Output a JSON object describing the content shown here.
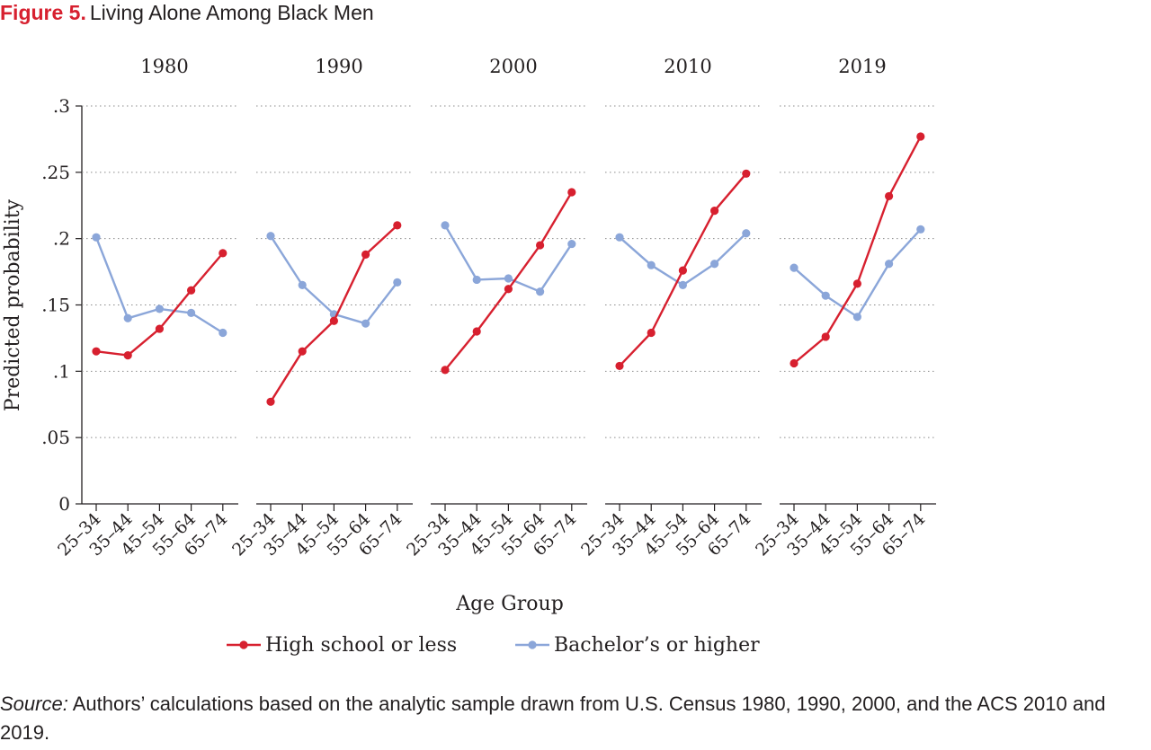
{
  "figure": {
    "label": "Figure 5.",
    "title": "Living Alone Among Black Men"
  },
  "source": {
    "lead": "Source:",
    "text": "Authors’ calculations based on the analytic sample drawn from U.S. Census 1980, 1990, 2000, and the ACS 2010 and 2019."
  },
  "colors": {
    "high_school": "#d7202f",
    "bachelors": "#8ba6d9",
    "text": "#231f20",
    "grid": "#8a8a8a"
  },
  "chart_data": {
    "type": "line",
    "xlabel": "Age Group",
    "ylabel": "Predicted probability",
    "ylim": [
      0,
      0.3
    ],
    "yticks": [
      0,
      0.05,
      0.1,
      0.15,
      0.2,
      0.25,
      0.3
    ],
    "ytick_labels": [
      "0",
      ".05",
      ".1",
      ".15",
      ".2",
      ".25",
      ".3"
    ],
    "grid": true,
    "legend_position": "bottom",
    "categories": [
      "25–34",
      "35–44",
      "45–54",
      "55–64",
      "65–74"
    ],
    "series_names": [
      "High school or less",
      "Bachelor’s or higher"
    ],
    "panels": [
      {
        "title": "1980",
        "series": [
          {
            "name": "High school or less",
            "values": [
              0.115,
              0.112,
              0.132,
              0.161,
              0.189
            ]
          },
          {
            "name": "Bachelor’s or higher",
            "values": [
              0.201,
              0.14,
              0.147,
              0.144,
              0.129
            ]
          }
        ]
      },
      {
        "title": "1990",
        "series": [
          {
            "name": "High school or less",
            "values": [
              0.077,
              0.115,
              0.138,
              0.188,
              0.21
            ]
          },
          {
            "name": "Bachelor’s or higher",
            "values": [
              0.202,
              0.165,
              0.143,
              0.136,
              0.167
            ]
          }
        ]
      },
      {
        "title": "2000",
        "series": [
          {
            "name": "High school or less",
            "values": [
              0.101,
              0.13,
              0.162,
              0.195,
              0.235
            ]
          },
          {
            "name": "Bachelor’s or higher",
            "values": [
              0.21,
              0.169,
              0.17,
              0.16,
              0.196
            ]
          }
        ]
      },
      {
        "title": "2010",
        "series": [
          {
            "name": "High school or less",
            "values": [
              0.104,
              0.129,
              0.176,
              0.221,
              0.249
            ]
          },
          {
            "name": "Bachelor’s or higher",
            "values": [
              0.201,
              0.18,
              0.165,
              0.181,
              0.204
            ]
          }
        ]
      },
      {
        "title": "2019",
        "series": [
          {
            "name": "High school or less",
            "values": [
              0.106,
              0.126,
              0.166,
              0.232,
              0.277
            ]
          },
          {
            "name": "Bachelor’s or higher",
            "values": [
              0.178,
              0.157,
              0.141,
              0.181,
              0.207
            ]
          }
        ]
      }
    ]
  }
}
